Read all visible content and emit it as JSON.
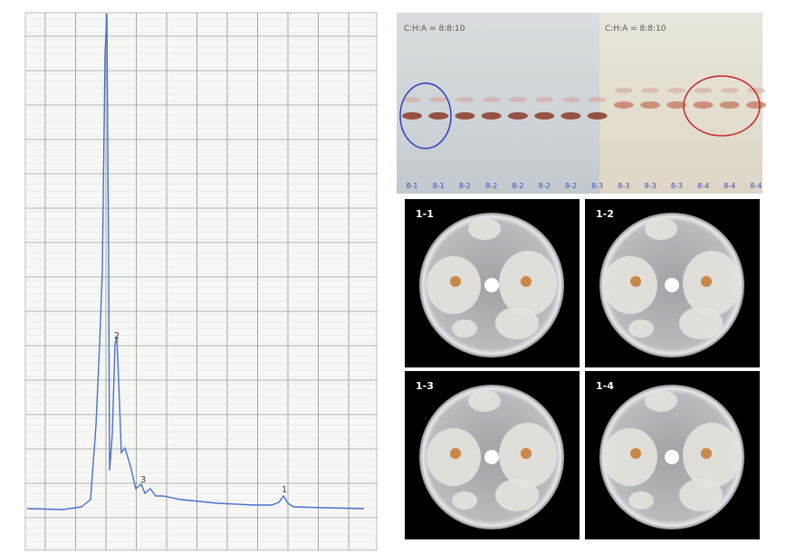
{
  "chromatogram": {
    "peaks": [
      "2",
      "3",
      "1"
    ]
  },
  "tlc": {
    "headers": [
      "C:H:A = 8:8:10",
      "C:H:A = 8:8:10"
    ],
    "lanes": [
      "8-1",
      "8-1",
      "8-2",
      "8-2",
      "8-2",
      "8-2",
      "8-2",
      "8-3",
      "8-3",
      "8-3",
      "8-3",
      "8-4",
      "8-4",
      "8-4"
    ]
  },
  "plates": [
    "1-1",
    "1-2",
    "1-3",
    "1-4"
  ]
}
